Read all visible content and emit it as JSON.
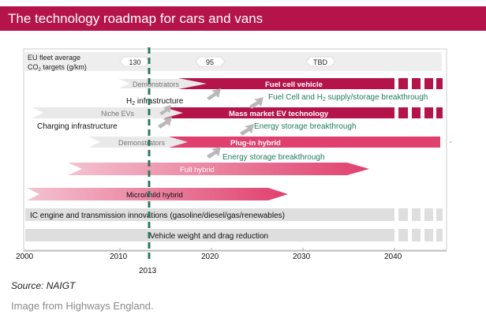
{
  "title": "The technology roadmap for cars and vans",
  "targets": {
    "label_line1": "EU fleet average",
    "label_line2": "CO",
    "label_sub": "2",
    "label_line2b": " targets (g/km)",
    "values": [
      "130",
      "95",
      "TBD"
    ]
  },
  "years": [
    "2000",
    "2010",
    "2020",
    "2030",
    "2040"
  ],
  "current_year": "2013",
  "bars": {
    "demonstrators_fc": "Demonstrators",
    "fuel_cell_vehicle": "Fuel cell vehicle",
    "h2_infra_prefix": "H",
    "h2_infra_sub": "2",
    "h2_infra_suffix": " infrastructure",
    "fuel_cell_supply_prefix": "Fuel Cell and H",
    "fuel_cell_supply_sub": "2",
    "fuel_cell_supply_suffix": " supply/storage breakthrough",
    "niche_evs": "Niche EVs",
    "mass_market_ev": "Mass market EV technology",
    "charging_infrastructure": "Charging infrastructure",
    "energy_storage_1": "Energy storage breakthrough",
    "demonstrators_phev": "Demonstrators",
    "plug_in_hybrid": "Plug-in hybrid",
    "energy_storage_2": "Energy storage breakthrough",
    "full_hybrid": "Full hybrid",
    "micro_mild_hybrid": "Micro/mild hybrid",
    "ic_engine": "IC engine and transmission innovations (gasoline/diesel/gas/renewables)",
    "vehicle_weight": "Vehicle weight and drag reduction"
  },
  "source": "Source: NAIGT",
  "credit": "Image from Highways England.",
  "colors": {
    "crimson": "#b5144a",
    "pink": "#e0406e",
    "green": "#1e7d5c",
    "grey": "#d9d9d9",
    "dashed_line": "#2a7a5a"
  }
}
